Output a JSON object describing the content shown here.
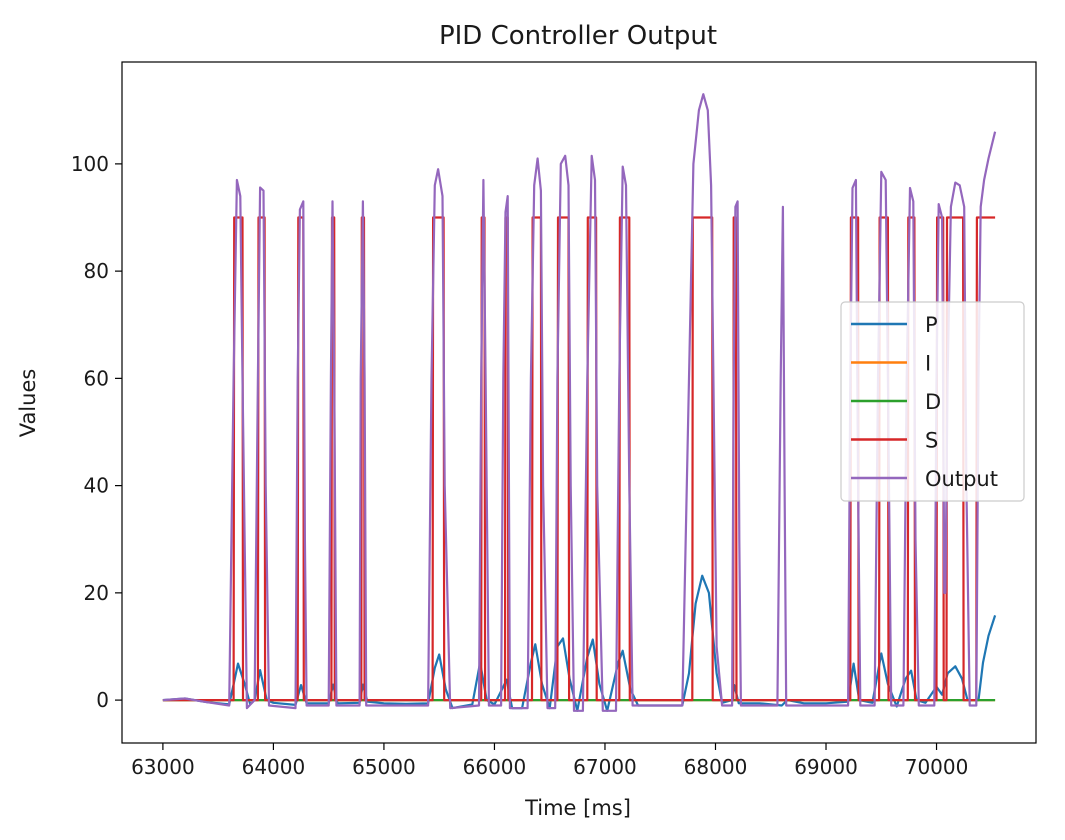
{
  "chart_data": {
    "type": "line",
    "title": "PID Controller Output",
    "xlabel": "Time [ms]",
    "ylabel": "Values",
    "xlim": [
      62630,
      70900
    ],
    "ylim": [
      -8,
      119
    ],
    "xticks": [
      63000,
      64000,
      65000,
      66000,
      67000,
      68000,
      69000,
      70000
    ],
    "yticks": [
      0,
      20,
      40,
      60,
      80,
      100
    ],
    "grid": false,
    "legend_position": "center-right",
    "colors": {
      "P": "#1f77b4",
      "I": "#ff7f0e",
      "D": "#2ca02c",
      "S": "#d62728",
      "Output": "#9467bd"
    },
    "series": [
      {
        "name": "P",
        "points": [
          [
            63000,
            0
          ],
          [
            63200,
            0.3
          ],
          [
            63400,
            -0.4
          ],
          [
            63600,
            -0.8
          ],
          [
            63630,
            2
          ],
          [
            63680,
            6.8
          ],
          [
            63740,
            3
          ],
          [
            63790,
            -0.8
          ],
          [
            63830,
            0
          ],
          [
            63880,
            5.6
          ],
          [
            63940,
            0
          ],
          [
            64000,
            -0.5
          ],
          [
            64200,
            -0.9
          ],
          [
            64250,
            2.8
          ],
          [
            64300,
            -0.6
          ],
          [
            64500,
            -0.6
          ],
          [
            64540,
            2.9
          ],
          [
            64580,
            -0.6
          ],
          [
            64780,
            -0.5
          ],
          [
            64810,
            2.9
          ],
          [
            64850,
            -0.3
          ],
          [
            65000,
            -0.6
          ],
          [
            65200,
            -0.7
          ],
          [
            65400,
            -0.6
          ],
          [
            65460,
            6
          ],
          [
            65500,
            8.5
          ],
          [
            65560,
            2
          ],
          [
            65620,
            -1.5
          ],
          [
            65800,
            -0.8
          ],
          [
            65870,
            7
          ],
          [
            65930,
            0
          ],
          [
            66000,
            -0.8
          ],
          [
            66080,
            2.5
          ],
          [
            66110,
            3.8
          ],
          [
            66160,
            -1.5
          ],
          [
            66250,
            -1.5
          ],
          [
            66330,
            7
          ],
          [
            66370,
            10.4
          ],
          [
            66430,
            3
          ],
          [
            66500,
            -1.5
          ],
          [
            66570,
            10
          ],
          [
            66620,
            11.5
          ],
          [
            66680,
            4
          ],
          [
            66750,
            -2
          ],
          [
            66840,
            8
          ],
          [
            66890,
            11.3
          ],
          [
            66950,
            3
          ],
          [
            67020,
            -2
          ],
          [
            67120,
            7
          ],
          [
            67160,
            9.2
          ],
          [
            67230,
            2
          ],
          [
            67300,
            -1
          ],
          [
            67500,
            -1
          ],
          [
            67700,
            -1
          ],
          [
            67760,
            5
          ],
          [
            67820,
            18
          ],
          [
            67880,
            23.2
          ],
          [
            67940,
            20
          ],
          [
            68010,
            5
          ],
          [
            68060,
            -0.5
          ],
          [
            68150,
            0
          ],
          [
            68170,
            2.8
          ],
          [
            68210,
            -0.6
          ],
          [
            68400,
            -0.6
          ],
          [
            68600,
            -1
          ],
          [
            68650,
            0
          ],
          [
            68800,
            -0.6
          ],
          [
            69000,
            -0.6
          ],
          [
            69200,
            -0.3
          ],
          [
            69250,
            6.8
          ],
          [
            69300,
            0
          ],
          [
            69420,
            -0.5
          ],
          [
            69500,
            8.7
          ],
          [
            69560,
            3
          ],
          [
            69640,
            -1.2
          ],
          [
            69720,
            4
          ],
          [
            69770,
            5.5
          ],
          [
            69820,
            0
          ],
          [
            69900,
            -0.5
          ],
          [
            70000,
            2.5
          ],
          [
            70050,
            1
          ],
          [
            70100,
            5
          ],
          [
            70170,
            6.3
          ],
          [
            70230,
            4
          ],
          [
            70280,
            0
          ],
          [
            70380,
            0
          ],
          [
            70420,
            7
          ],
          [
            70470,
            12
          ],
          [
            70530,
            15.8
          ]
        ]
      },
      {
        "name": "I",
        "points": [
          [
            63000,
            0
          ],
          [
            70530,
            0
          ]
        ]
      },
      {
        "name": "D",
        "points": [
          [
            63000,
            0
          ],
          [
            70530,
            0
          ]
        ]
      },
      {
        "name": "S",
        "points": [
          [
            63000,
            0
          ],
          [
            63640,
            0
          ],
          [
            63645,
            90
          ],
          [
            63720,
            90
          ],
          [
            63725,
            0
          ],
          [
            63860,
            0
          ],
          [
            63865,
            90
          ],
          [
            63920,
            90
          ],
          [
            63925,
            0
          ],
          [
            64220,
            0
          ],
          [
            64225,
            90
          ],
          [
            64270,
            90
          ],
          [
            64275,
            0
          ],
          [
            64525,
            0
          ],
          [
            64530,
            90
          ],
          [
            64550,
            90
          ],
          [
            64555,
            0
          ],
          [
            64795,
            0
          ],
          [
            64800,
            90
          ],
          [
            64820,
            90
          ],
          [
            64825,
            0
          ],
          [
            65440,
            0
          ],
          [
            65445,
            90
          ],
          [
            65540,
            90
          ],
          [
            65545,
            0
          ],
          [
            65880,
            0
          ],
          [
            65885,
            90
          ],
          [
            65910,
            90
          ],
          [
            65915,
            0
          ],
          [
            66095,
            0
          ],
          [
            66100,
            90
          ],
          [
            66120,
            90
          ],
          [
            66125,
            0
          ],
          [
            66340,
            0
          ],
          [
            66345,
            90
          ],
          [
            66420,
            90
          ],
          [
            66425,
            0
          ],
          [
            66570,
            0
          ],
          [
            66575,
            90
          ],
          [
            66670,
            90
          ],
          [
            66675,
            0
          ],
          [
            66840,
            0
          ],
          [
            66845,
            90
          ],
          [
            66920,
            90
          ],
          [
            66925,
            0
          ],
          [
            67130,
            0
          ],
          [
            67135,
            90
          ],
          [
            67220,
            90
          ],
          [
            67225,
            0
          ],
          [
            67790,
            0
          ],
          [
            67795,
            90
          ],
          [
            67970,
            90
          ],
          [
            67975,
            0
          ],
          [
            68160,
            0
          ],
          [
            68165,
            90
          ],
          [
            68185,
            90
          ],
          [
            68190,
            0
          ],
          [
            69220,
            0
          ],
          [
            69225,
            90
          ],
          [
            69290,
            90
          ],
          [
            69295,
            0
          ],
          [
            69480,
            0
          ],
          [
            69485,
            90
          ],
          [
            69560,
            90
          ],
          [
            69565,
            0
          ],
          [
            69740,
            0
          ],
          [
            69745,
            90
          ],
          [
            69800,
            90
          ],
          [
            69805,
            0
          ],
          [
            70000,
            0
          ],
          [
            70005,
            90
          ],
          [
            70060,
            90
          ],
          [
            70065,
            0
          ],
          [
            70090,
            0
          ],
          [
            70095,
            90
          ],
          [
            70240,
            90
          ],
          [
            70245,
            0
          ],
          [
            70360,
            0
          ],
          [
            70365,
            90
          ],
          [
            70530,
            90
          ]
        ]
      },
      {
        "name": "Output",
        "points": [
          [
            63000,
            0
          ],
          [
            63200,
            0.3
          ],
          [
            63400,
            -0.4
          ],
          [
            63600,
            -1
          ],
          [
            63640,
            60
          ],
          [
            63670,
            97
          ],
          [
            63700,
            94
          ],
          [
            63720,
            60
          ],
          [
            63760,
            -1.5
          ],
          [
            63830,
            0
          ],
          [
            63860,
            60
          ],
          [
            63880,
            95.6
          ],
          [
            63910,
            95
          ],
          [
            63930,
            40
          ],
          [
            63960,
            -1
          ],
          [
            64200,
            -1.5
          ],
          [
            64220,
            60
          ],
          [
            64240,
            91.5
          ],
          [
            64270,
            93
          ],
          [
            64285,
            30
          ],
          [
            64300,
            -1
          ],
          [
            64500,
            -1
          ],
          [
            64520,
            60
          ],
          [
            64535,
            93
          ],
          [
            64550,
            60
          ],
          [
            64570,
            -1
          ],
          [
            64780,
            -1
          ],
          [
            64790,
            60
          ],
          [
            64810,
            93
          ],
          [
            64825,
            60
          ],
          [
            64840,
            -1
          ],
          [
            65000,
            -1
          ],
          [
            65200,
            -1
          ],
          [
            65400,
            -1
          ],
          [
            65430,
            60
          ],
          [
            65460,
            96
          ],
          [
            65490,
            99
          ],
          [
            65530,
            94
          ],
          [
            65550,
            40
          ],
          [
            65600,
            -1.5
          ],
          [
            65860,
            -1
          ],
          [
            65880,
            60
          ],
          [
            65900,
            97
          ],
          [
            65920,
            60
          ],
          [
            65950,
            -1
          ],
          [
            66060,
            -1
          ],
          [
            66080,
            60
          ],
          [
            66100,
            91
          ],
          [
            66120,
            94
          ],
          [
            66140,
            -1.5
          ],
          [
            66300,
            -1.5
          ],
          [
            66330,
            60
          ],
          [
            66360,
            96
          ],
          [
            66390,
            101
          ],
          [
            66420,
            95
          ],
          [
            66440,
            40
          ],
          [
            66480,
            -1.5
          ],
          [
            66550,
            -1.5
          ],
          [
            66570,
            60
          ],
          [
            66600,
            100
          ],
          [
            66640,
            101.5
          ],
          [
            66670,
            96
          ],
          [
            66690,
            40
          ],
          [
            66720,
            -2
          ],
          [
            66800,
            -2
          ],
          [
            66840,
            60
          ],
          [
            66880,
            101.5
          ],
          [
            66910,
            97
          ],
          [
            66930,
            40
          ],
          [
            66980,
            -2
          ],
          [
            67100,
            -2
          ],
          [
            67130,
            60
          ],
          [
            67160,
            99.5
          ],
          [
            67190,
            96
          ],
          [
            67220,
            40
          ],
          [
            67250,
            -1
          ],
          [
            67500,
            -1
          ],
          [
            67700,
            -1
          ],
          [
            67760,
            60
          ],
          [
            67800,
            100
          ],
          [
            67850,
            110
          ],
          [
            67890,
            113
          ],
          [
            67930,
            110
          ],
          [
            67960,
            96
          ],
          [
            68010,
            10
          ],
          [
            68060,
            -1
          ],
          [
            68150,
            -1
          ],
          [
            68165,
            60
          ],
          [
            68180,
            92
          ],
          [
            68200,
            93
          ],
          [
            68215,
            30
          ],
          [
            68230,
            -1
          ],
          [
            68400,
            -1
          ],
          [
            68560,
            -1
          ],
          [
            68590,
            60
          ],
          [
            68610,
            92
          ],
          [
            68625,
            40
          ],
          [
            68640,
            -1
          ],
          [
            68800,
            -1
          ],
          [
            69000,
            -1
          ],
          [
            69200,
            -1
          ],
          [
            69220,
            60
          ],
          [
            69240,
            95.5
          ],
          [
            69270,
            97
          ],
          [
            69290,
            40
          ],
          [
            69310,
            -1
          ],
          [
            69440,
            -1
          ],
          [
            69470,
            60
          ],
          [
            69500,
            98.5
          ],
          [
            69540,
            97
          ],
          [
            69560,
            60
          ],
          [
            69590,
            -1
          ],
          [
            69700,
            -1
          ],
          [
            69730,
            60
          ],
          [
            69760,
            95.5
          ],
          [
            69790,
            93
          ],
          [
            69810,
            30
          ],
          [
            69840,
            -1
          ],
          [
            69980,
            -1
          ],
          [
            70000,
            60
          ],
          [
            70020,
            92.5
          ],
          [
            70050,
            90
          ],
          [
            70070,
            20
          ],
          [
            70080,
            20
          ],
          [
            70100,
            60
          ],
          [
            70130,
            92
          ],
          [
            70170,
            96.5
          ],
          [
            70210,
            96
          ],
          [
            70250,
            92
          ],
          [
            70270,
            40
          ],
          [
            70300,
            -1
          ],
          [
            70360,
            -1
          ],
          [
            70380,
            60
          ],
          [
            70400,
            92
          ],
          [
            70430,
            97
          ],
          [
            70470,
            101
          ],
          [
            70530,
            106
          ]
        ]
      }
    ]
  }
}
